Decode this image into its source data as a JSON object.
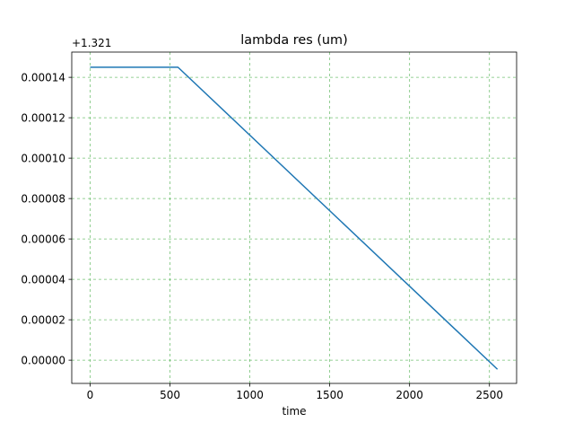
{
  "chart_data": {
    "type": "line",
    "title": "lambda res (um)",
    "xlabel": "time",
    "ylabel": "",
    "offset_text": "+1.321",
    "xlim": [
      -115,
      2670
    ],
    "ylim": [
      -1.15e-05,
      0.0001525
    ],
    "x_ticks": [
      0,
      500,
      1000,
      1500,
      2000,
      2500
    ],
    "x_tick_labels": [
      "0",
      "500",
      "1000",
      "1500",
      "2000",
      "2500"
    ],
    "y_ticks": [
      0,
      2e-05,
      4e-05,
      6e-05,
      8e-05,
      0.0001,
      0.00012,
      0.00014
    ],
    "y_tick_labels": [
      "0.00000",
      "0.00002",
      "0.00004",
      "0.00006",
      "0.00008",
      "0.00010",
      "0.00012",
      "0.00014"
    ],
    "grid": true,
    "series": [
      {
        "x": [
          0,
          550,
          2550
        ],
        "y": [
          0.000145,
          0.000145,
          -4.5e-06
        ],
        "color": "#1f77b4"
      }
    ],
    "grid_color": "#2ca02c",
    "axis_color": "#000000"
  }
}
